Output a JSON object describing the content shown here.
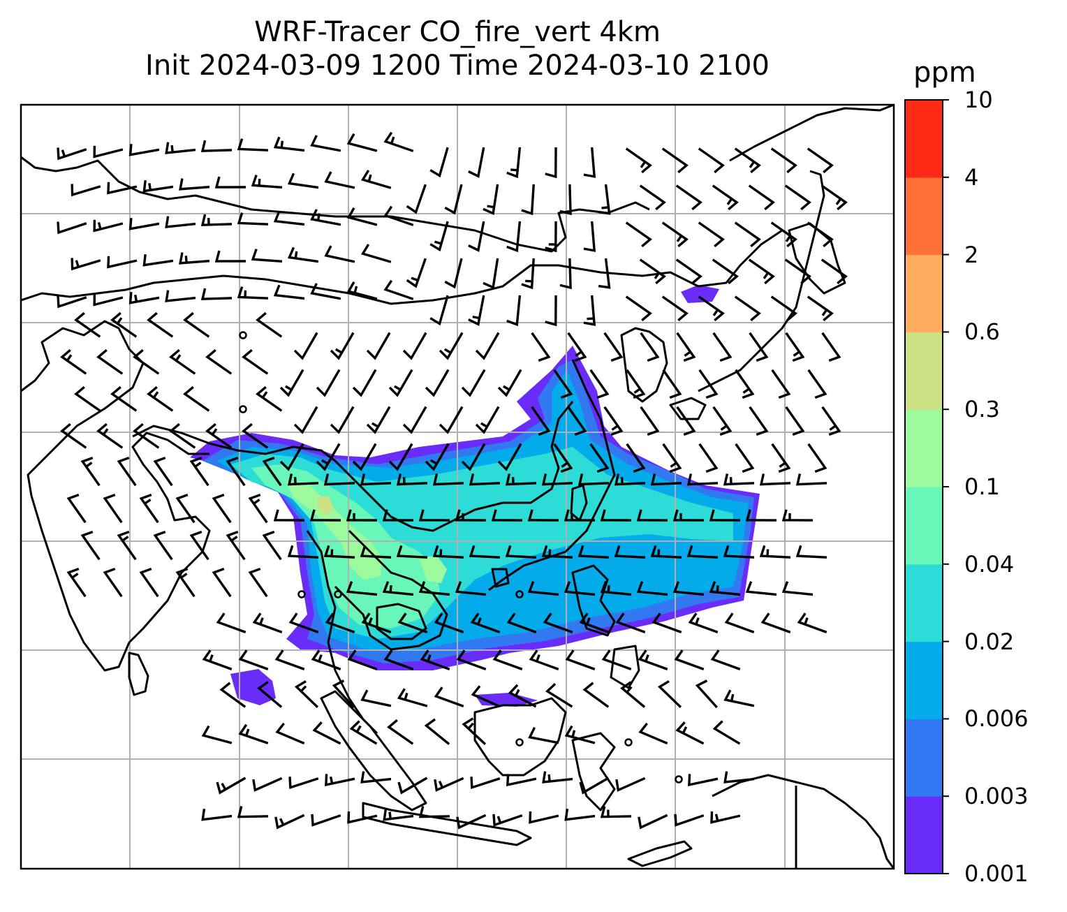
{
  "title": {
    "line1": "WRF-Tracer CO_fire_vert 4km",
    "line2": "Init 2024-03-09 1200 Time 2024-03-10 2100"
  },
  "colorbar": {
    "unit": "ppm",
    "levels": [
      "0.001",
      "0.003",
      "0.006",
      "0.02",
      "0.04",
      "0.1",
      "0.3",
      "0.6",
      "2",
      "4",
      "10"
    ],
    "colors": [
      "#6a2cf8",
      "#3278f1",
      "#04abea",
      "#2ddbd7",
      "#68f7b9",
      "#9dfa9d",
      "#cde184",
      "#ffae60",
      "#ff7037",
      "#ff2a16"
    ]
  },
  "map": {
    "frame_color": "#000000",
    "gridline_color": "#b0b0b0",
    "coastline_color": "#000000",
    "wind_barb_color": "#000000"
  }
}
